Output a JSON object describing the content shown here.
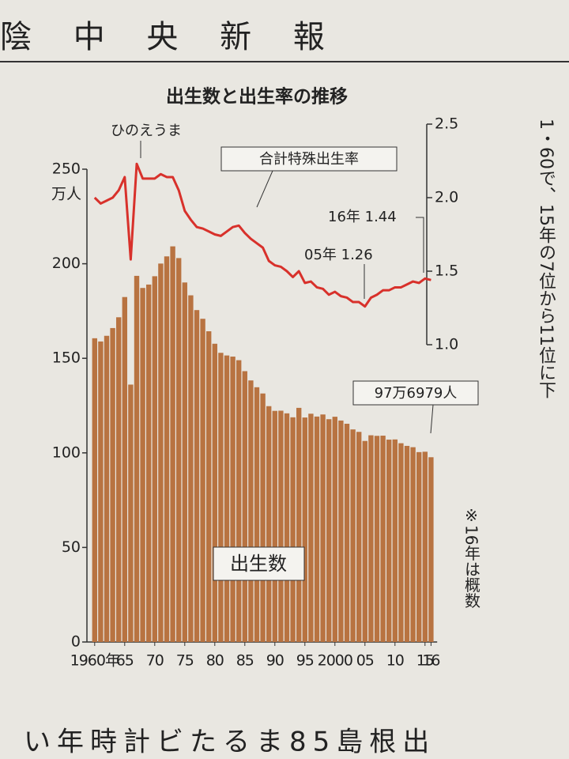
{
  "masthead": "陰 中 央 新 報",
  "side_text": "1・60で、15年の7位から11位に下",
  "bottom_text": "い年時計ビたるま85島根出",
  "chart_data": {
    "type": "bar",
    "title": "出生数と出生率の推移",
    "ylabel": "万人",
    "categories": [
      "1960年",
      null,
      null,
      null,
      null,
      "65",
      null,
      null,
      null,
      null,
      "70",
      null,
      null,
      null,
      null,
      "75",
      null,
      null,
      null,
      null,
      "80",
      null,
      null,
      null,
      null,
      "85",
      null,
      null,
      null,
      null,
      "90",
      null,
      null,
      null,
      null,
      "95",
      null,
      null,
      null,
      null,
      "2000",
      null,
      null,
      null,
      null,
      "05",
      null,
      null,
      null,
      null,
      "10",
      null,
      null,
      null,
      null,
      "15",
      "16"
    ],
    "series": [
      {
        "name": "出生数",
        "type": "bar",
        "color": "#b87341",
        "values": [
          160.6,
          158.9,
          161.9,
          166.0,
          171.7,
          182.4,
          136.1,
          193.6,
          187.2,
          189.0,
          193.4,
          200.1,
          203.9,
          209.2,
          203.0,
          190.1,
          183.3,
          175.5,
          170.9,
          164.3,
          157.7,
          152.9,
          151.5,
          150.9,
          149.0,
          143.2,
          138.3,
          134.7,
          131.4,
          124.7,
          122.2,
          122.3,
          120.9,
          118.8,
          123.8,
          118.7,
          120.7,
          119.2,
          120.3,
          117.8,
          119.1,
          117.1,
          115.4,
          112.4,
          111.1,
          106.3,
          109.3,
          109.0,
          109.1,
          107.0,
          107.1,
          105.1,
          103.7,
          103.0,
          100.4,
          100.6,
          97.6979
        ]
      },
      {
        "name": "合計特殊出生率",
        "type": "line",
        "axis": "y2",
        "color": "#d8312b",
        "values": [
          2.0,
          1.96,
          1.98,
          2.0,
          2.05,
          2.14,
          1.58,
          2.23,
          2.13,
          2.13,
          2.13,
          2.16,
          2.14,
          2.14,
          2.05,
          1.91,
          1.85,
          1.8,
          1.79,
          1.77,
          1.75,
          1.74,
          1.77,
          1.8,
          1.81,
          1.76,
          1.72,
          1.69,
          1.66,
          1.57,
          1.54,
          1.53,
          1.5,
          1.46,
          1.5,
          1.42,
          1.43,
          1.39,
          1.38,
          1.34,
          1.36,
          1.33,
          1.32,
          1.29,
          1.29,
          1.26,
          1.32,
          1.34,
          1.37,
          1.37,
          1.39,
          1.39,
          1.41,
          1.43,
          1.42,
          1.45,
          1.44
        ]
      }
    ],
    "ylim": [
      0,
      250
    ],
    "yticks": [
      0,
      50,
      100,
      150,
      200,
      250
    ],
    "y2lim": [
      1.0,
      2.5
    ],
    "y2ticks": [
      {
        "value": 1.0,
        "label": "1.0"
      },
      1.5,
      {
        "value": 2.0,
        "label": "2.0"
      },
      2.5
    ],
    "annotations": [
      "ひのえうま",
      "05年 1.26",
      "16年 1.44",
      "97万6979人",
      "※16年は概数"
    ]
  }
}
